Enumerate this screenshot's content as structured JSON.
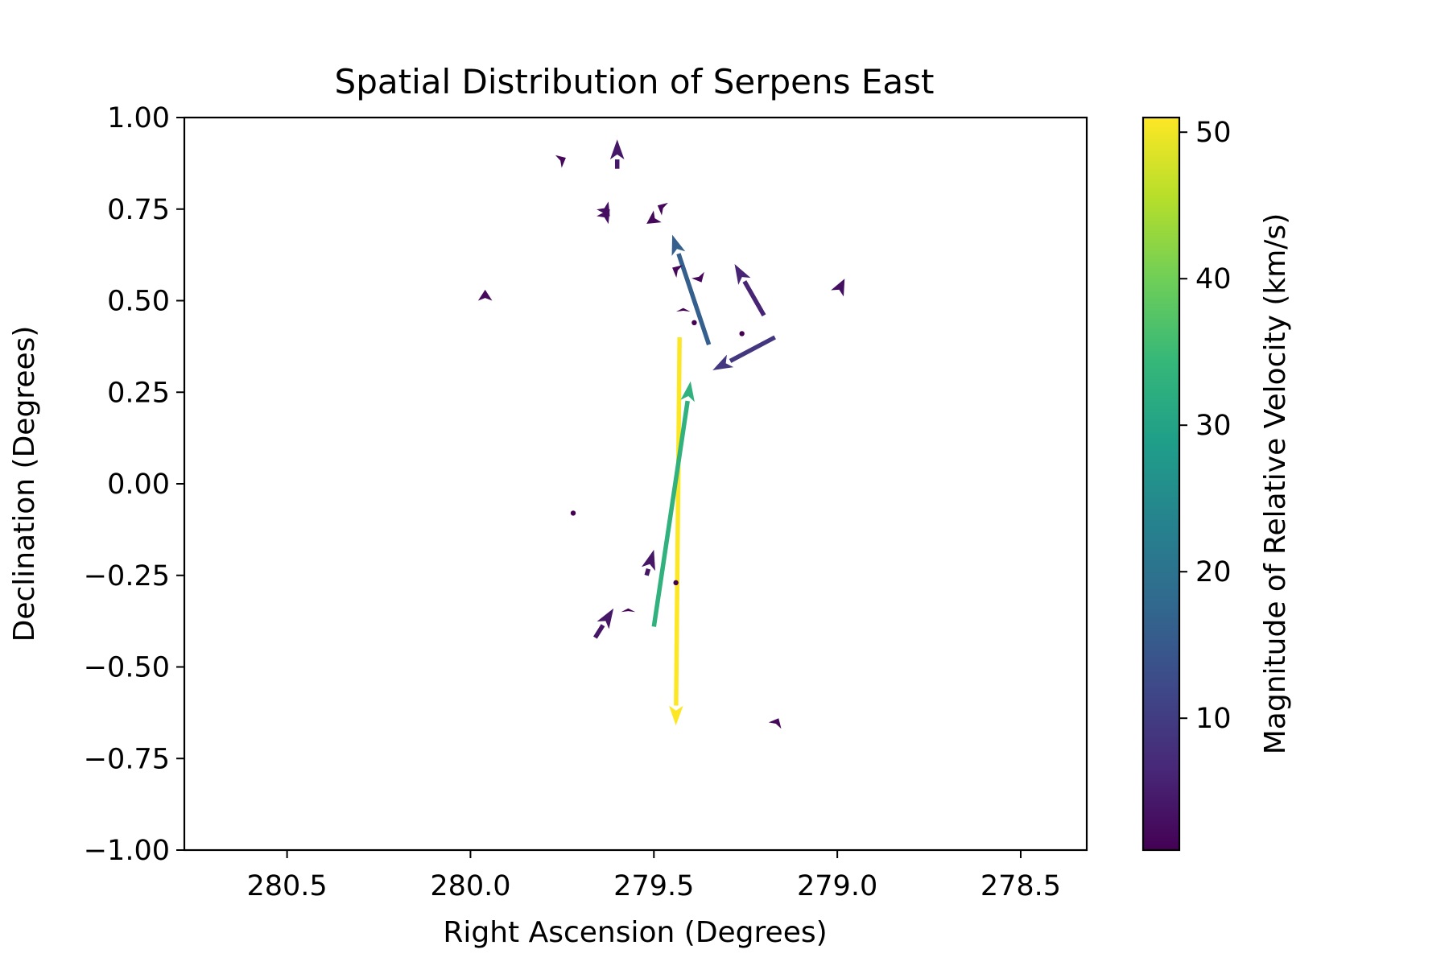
{
  "chart_data": {
    "type": "quiver",
    "title": "Spatial Distribution of Serpens East",
    "xlabel": "Right Ascension (Degrees)",
    "ylabel": "Declination (Degrees)",
    "xlim": [
      280.78,
      278.32
    ],
    "ylim": [
      -1.0,
      1.0
    ],
    "x_inverted": true,
    "x_ticks": [
      280.5,
      280.0,
      279.5,
      279.0,
      278.5
    ],
    "x_tick_labels": [
      "280.5",
      "280.0",
      "279.5",
      "279.0",
      "278.5"
    ],
    "y_ticks": [
      1.0,
      0.75,
      0.5,
      0.25,
      0.0,
      -0.25,
      -0.5,
      -0.75,
      -1.0
    ],
    "y_tick_labels": [
      "1.00",
      "0.75",
      "0.50",
      "0.25",
      "0.00",
      "−0.25",
      "−0.50",
      "−0.75",
      "−1.00"
    ],
    "grid": false,
    "colorbar": {
      "label": "Magnitude of Relative Velocity (km/s)",
      "colormap": "viridis",
      "range": [
        1,
        51
      ],
      "ticks": [
        10,
        20,
        30,
        40,
        50
      ],
      "tick_labels": [
        "10",
        "20",
        "30",
        "40",
        "50"
      ]
    },
    "arrows": [
      {
        "ra": 279.43,
        "dec": 0.4,
        "d_ra": 0.01,
        "d_dec": -1.06,
        "magnitude": 51
      },
      {
        "ra": 279.5,
        "dec": -0.39,
        "d_ra": -0.1,
        "d_dec": 0.67,
        "magnitude": 33
      },
      {
        "ra": 279.35,
        "dec": 0.38,
        "d_ra": 0.1,
        "d_dec": 0.3,
        "magnitude": 16
      },
      {
        "ra": 279.17,
        "dec": 0.4,
        "d_ra": 0.17,
        "d_dec": -0.09,
        "magnitude": 9
      },
      {
        "ra": 279.2,
        "dec": 0.46,
        "d_ra": 0.08,
        "d_dec": 0.14,
        "magnitude": 6
      },
      {
        "ra": 279.6,
        "dec": 0.86,
        "d_ra": 0.0,
        "d_dec": 0.08,
        "magnitude": 4
      },
      {
        "ra": 279.52,
        "dec": -0.25,
        "d_ra": -0.02,
        "d_dec": 0.07,
        "magnitude": 4
      },
      {
        "ra": 279.66,
        "dec": -0.42,
        "d_ra": -0.05,
        "d_dec": 0.08,
        "magnitude": 4
      },
      {
        "ra": 279.64,
        "dec": 0.72,
        "d_ra": -0.02,
        "d_dec": 0.03,
        "magnitude": 3
      },
      {
        "ra": 279.64,
        "dec": 0.76,
        "d_ra": -0.02,
        "d_dec": -0.03,
        "magnitude": 3
      },
      {
        "ra": 279.0,
        "dec": 0.52,
        "d_ra": -0.02,
        "d_dec": 0.04,
        "magnitude": 3
      },
      {
        "ra": 279.49,
        "dec": 0.73,
        "d_ra": 0.03,
        "d_dec": -0.02,
        "magnitude": 2
      },
      {
        "ra": 279.47,
        "dec": 0.75,
        "d_ra": 0.02,
        "d_dec": 0.01,
        "magnitude": 2
      },
      {
        "ra": 279.76,
        "dec": 0.88,
        "d_ra": -0.02,
        "d_dec": 0.01,
        "magnitude": 2
      },
      {
        "ra": 279.96,
        "dec": 0.5,
        "d_ra": 0.0,
        "d_dec": 0.03,
        "magnitude": 2
      },
      {
        "ra": 279.38,
        "dec": 0.57,
        "d_ra": -0.01,
        "d_dec": -0.02,
        "magnitude": 2
      },
      {
        "ra": 279.43,
        "dec": 0.58,
        "d_ra": 0.02,
        "d_dec": 0.01,
        "magnitude": 2
      },
      {
        "ra": 279.17,
        "dec": -0.66,
        "d_ra": -0.01,
        "d_dec": 0.02,
        "magnitude": 2
      },
      {
        "ra": 279.42,
        "dec": 0.47,
        "d_ra": 0.0,
        "d_dec": 0.01,
        "magnitude": 1
      },
      {
        "ra": 279.57,
        "dec": -0.35,
        "d_ra": 0.0,
        "d_dec": 0.01,
        "magnitude": 1
      },
      {
        "ra": 279.72,
        "dec": -0.08,
        "d_ra": 0.0,
        "d_dec": 0.0,
        "magnitude": 1
      },
      {
        "ra": 279.39,
        "dec": 0.44,
        "d_ra": 0.0,
        "d_dec": 0.0,
        "magnitude": 1
      },
      {
        "ra": 279.26,
        "dec": 0.41,
        "d_ra": 0.0,
        "d_dec": 0.0,
        "magnitude": 1
      },
      {
        "ra": 279.44,
        "dec": -0.27,
        "d_ra": 0.0,
        "d_dec": 0.0,
        "magnitude": 1
      }
    ]
  }
}
